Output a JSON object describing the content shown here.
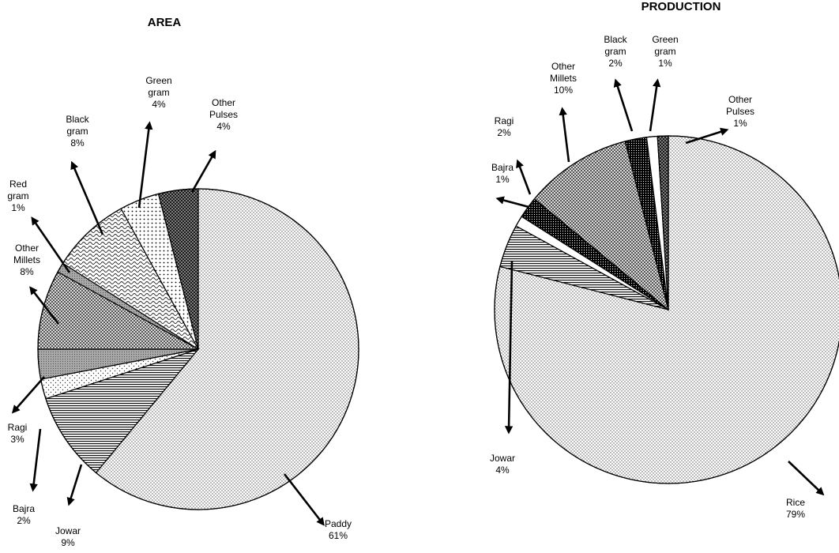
{
  "chart_data": [
    {
      "type": "pie",
      "title": "AREA",
      "slices": [
        {
          "category": "Paddy",
          "value": 61,
          "label": "61%"
        },
        {
          "category": "Jowar",
          "value": 9,
          "label": "9%"
        },
        {
          "category": "Bajra",
          "value": 2,
          "label": "2%"
        },
        {
          "category": "Ragi",
          "value": 3,
          "label": "3%"
        },
        {
          "category": "Other Millets",
          "value": 8,
          "label": "8%"
        },
        {
          "category": "Red gram",
          "value": 1,
          "label": "1%"
        },
        {
          "category": "Black gram",
          "value": 8,
          "label": "8%"
        },
        {
          "category": "Green gram",
          "value": 4,
          "label": "4%"
        },
        {
          "category": "Other Pulses",
          "value": 4,
          "label": "4%"
        }
      ]
    },
    {
      "type": "pie",
      "title": "PRODUCTION",
      "slices": [
        {
          "category": "Rice",
          "value": 79,
          "label": "79%"
        },
        {
          "category": "Jowar",
          "value": 4,
          "label": "4%"
        },
        {
          "category": "Bajra",
          "value": 1,
          "label": "1%"
        },
        {
          "category": "Ragi",
          "value": 2,
          "label": "2%"
        },
        {
          "category": "Other Millets",
          "value": 10,
          "label": "10%"
        },
        {
          "category": "Black gram",
          "value": 2,
          "label": "2%"
        },
        {
          "category": "Green gram",
          "value": 1,
          "label": "1%"
        },
        {
          "category": "Other Pulses",
          "value": 1,
          "label": "1%"
        }
      ]
    }
  ]
}
